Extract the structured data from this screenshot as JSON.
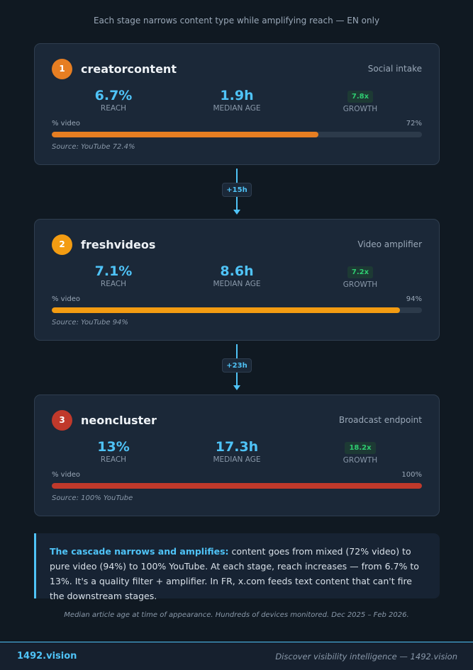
{
  "subtitle": "Each stage narrows content type while amplifying reach — EN only",
  "stages": [
    {
      "number": "1",
      "name": "creatorcontent",
      "role": "Social intake",
      "reach": "6.7%",
      "reach_label": "REACH",
      "median_age": "1.9h",
      "median_age_label": "MEDIAN AGE",
      "growth": "7.8x",
      "growth_label": "GROWTH",
      "bar_label": "% video",
      "bar_value": "72%",
      "video_pct": 72,
      "source": "Source: YouTube 72.4%",
      "color": "#e67e22"
    },
    {
      "number": "2",
      "name": "freshvideos",
      "role": "Video amplifier",
      "reach": "7.1%",
      "reach_label": "REACH",
      "median_age": "8.6h",
      "median_age_label": "MEDIAN AGE",
      "growth": "7.2x",
      "growth_label": "GROWTH",
      "bar_label": "% video",
      "bar_value": "94%",
      "video_pct": 94,
      "source": "Source: YouTube 94%",
      "color": "#f39c12"
    },
    {
      "number": "3",
      "name": "neoncluster",
      "role": "Broadcast endpoint",
      "reach": "13%",
      "reach_label": "REACH",
      "median_age": "17.3h",
      "median_age_label": "MEDIAN AGE",
      "growth": "18.2x",
      "growth_label": "GROWTH",
      "bar_label": "% video",
      "bar_value": "100%",
      "video_pct": 100,
      "source": "Source: 100% YouTube",
      "color": "#c0392b"
    }
  ],
  "connectors": [
    "+15h",
    "+23h"
  ],
  "insight": {
    "lead": "The cascade narrows and amplifies:",
    "text": " content goes from mixed (72% video) to pure video (94%) to 100% YouTube. At each stage, reach increases — from 6.7% to 13%. It's a quality filter + amplifier. In FR, x.com feeds text content that can't fire the downstream stages."
  },
  "footnote": "Median article age at time of appearance. Hundreds of devices monitored. Dec 2025 – Feb 2026.",
  "footer": {
    "brand": "1492.vision",
    "tagline": "Discover visibility intelligence — 1492.vision"
  },
  "colors": {
    "accent": "#4fc3f7",
    "growth": "#2ecc71"
  }
}
